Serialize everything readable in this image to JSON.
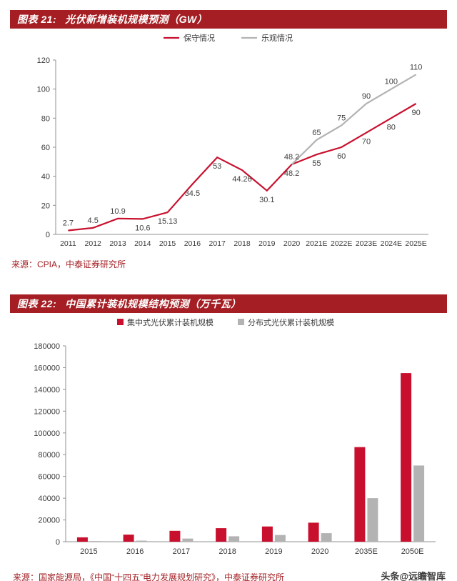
{
  "page": {
    "watermark": "头条@远瞻智库"
  },
  "colors": {
    "header_red": "#a41e23",
    "series_red": "#c8102e",
    "series_gray": "#b3b3b3",
    "source_red": "#a41e23"
  },
  "figures": [
    {
      "tag": "图表 21:",
      "title": "光伏新增装机规模预测（GW）",
      "source": "来源：CPIA，中泰证券研究所"
    },
    {
      "tag": "图表 22:",
      "title": "中国累计装机规模结构预测（万千瓦）",
      "source": "来源：国家能源局，《中国“十四五”电力发展规划研究》，中泰证券研究所"
    }
  ],
  "chart_data": [
    {
      "type": "line",
      "title": "光伏新增装机规模预测（GW）",
      "categories": [
        "2011",
        "2012",
        "2013",
        "2014",
        "2015",
        "2016",
        "2017",
        "2018",
        "2019",
        "2020",
        "2021E",
        "2022E",
        "2023E",
        "2024E",
        "2025E"
      ],
      "series": [
        {
          "name": "保守情况",
          "color": "#c8102e",
          "values": [
            2.7,
            4.5,
            10.9,
            10.6,
            15.13,
            34.5,
            53,
            44.26,
            30.1,
            48.2,
            55,
            60,
            70,
            80,
            90
          ],
          "label_pos": [
            "above",
            "above",
            "above",
            "below",
            "below",
            "below",
            "below",
            "below",
            "below",
            "below",
            "below",
            "below",
            "below",
            "below",
            "below"
          ]
        },
        {
          "name": "乐观情况",
          "color": "#b3b3b3",
          "values": [
            null,
            null,
            null,
            null,
            null,
            null,
            null,
            null,
            null,
            48.2,
            65,
            75,
            90,
            100,
            110
          ],
          "label_pos": [
            "above",
            "above",
            "above",
            "above",
            "above",
            "above",
            "above",
            "above",
            "above",
            "above",
            "above",
            "above",
            "above",
            "above",
            "above"
          ]
        }
      ],
      "ylim": [
        0,
        120
      ],
      "ytick": 20,
      "grid": false,
      "legend_position": "top"
    },
    {
      "type": "bar",
      "title": "中国累计装机规模结构预测（万千瓦）",
      "categories": [
        "2015",
        "2016",
        "2017",
        "2018",
        "2019",
        "2020",
        "2035E",
        "2050E"
      ],
      "series": [
        {
          "name": "集中式光伏累计装机规模",
          "color": "#c8102e",
          "values": [
            4000,
            6500,
            10000,
            12400,
            14000,
            17500,
            87000,
            155000
          ]
        },
        {
          "name": "分布式光伏累计装机规模",
          "color": "#b3b3b3",
          "values": [
            600,
            1000,
            2900,
            5000,
            6200,
            7800,
            40000,
            70000
          ]
        }
      ],
      "ylim": [
        0,
        180000
      ],
      "ytick": 20000,
      "grid": false,
      "legend_position": "top"
    }
  ]
}
